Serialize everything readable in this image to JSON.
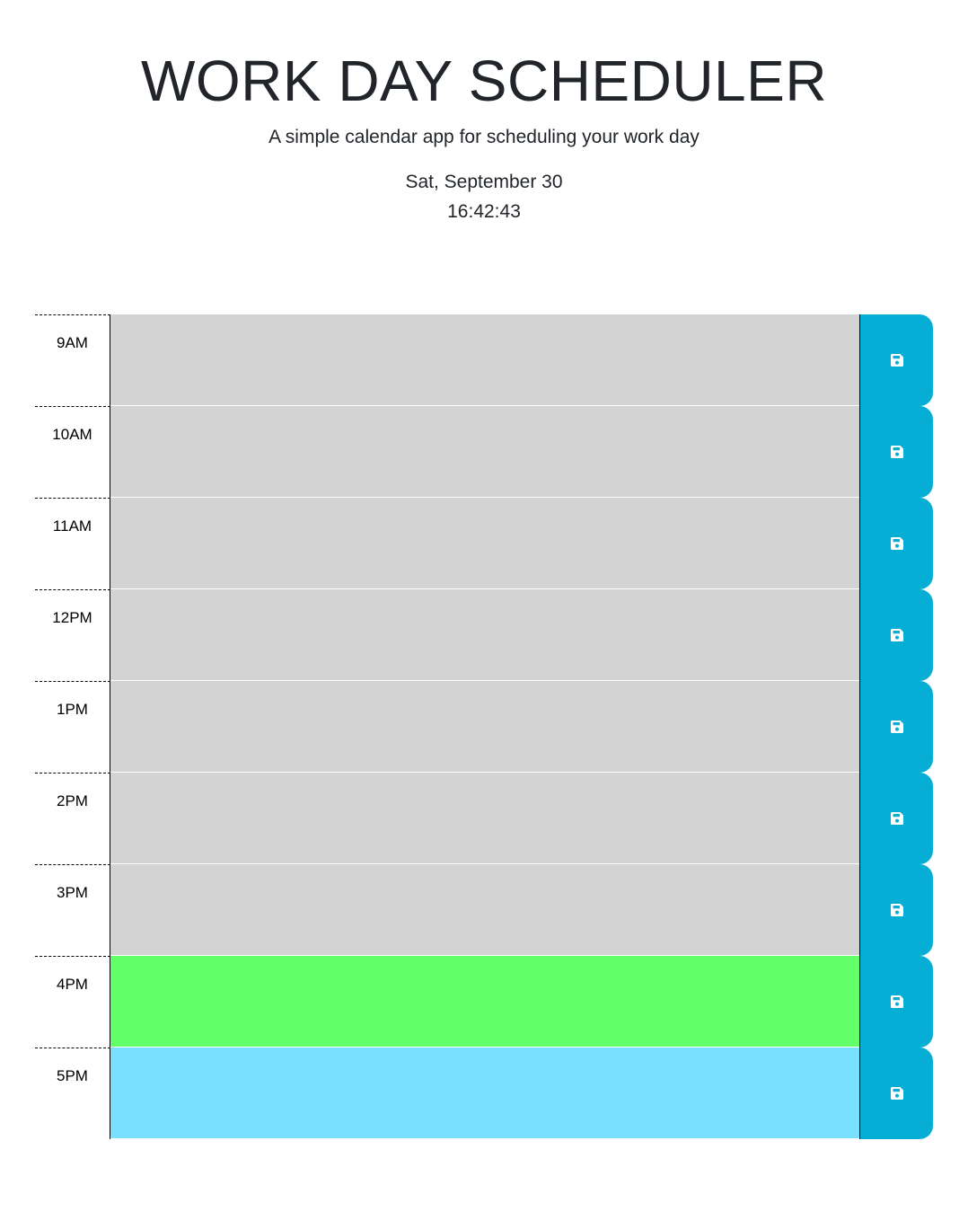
{
  "header": {
    "title": "WORK DAY SCHEDULER",
    "subtitle": "A simple calendar app for scheduling your work day",
    "date": "Sat, September 30",
    "time": "16:42:43"
  },
  "timeblocks": [
    {
      "hour": "9AM",
      "text": "",
      "state": "past"
    },
    {
      "hour": "10AM",
      "text": "",
      "state": "past"
    },
    {
      "hour": "11AM",
      "text": "",
      "state": "past"
    },
    {
      "hour": "12PM",
      "text": "",
      "state": "past"
    },
    {
      "hour": "1PM",
      "text": "",
      "state": "past"
    },
    {
      "hour": "2PM",
      "text": "",
      "state": "past"
    },
    {
      "hour": "3PM",
      "text": "",
      "state": "past"
    },
    {
      "hour": "4PM",
      "text": "",
      "state": "present"
    },
    {
      "hour": "5PM",
      "text": "",
      "state": "future"
    }
  ],
  "save_icon": "floppy-disk-icon",
  "colors": {
    "past": "#d3d3d3",
    "present": "#63ff6a",
    "future": "#7ae0ff",
    "save_button": "#06aed5"
  }
}
